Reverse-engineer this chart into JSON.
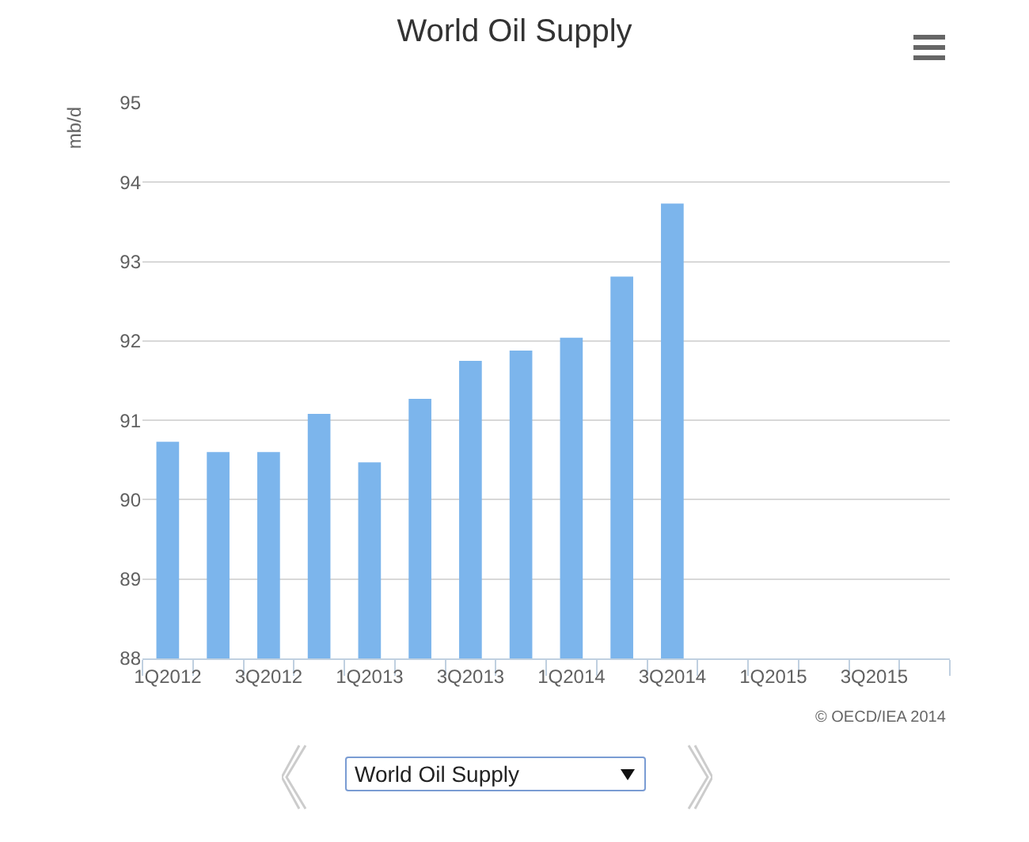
{
  "chart_data": {
    "type": "bar",
    "title": "World Oil Supply",
    "ylabel": "mb/d",
    "categories": [
      "1Q2012",
      null,
      "3Q2012",
      null,
      "1Q2013",
      null,
      "3Q2013",
      null,
      "1Q2014",
      null,
      "3Q2014",
      null,
      "1Q2015",
      null,
      "3Q2015",
      null
    ],
    "series": [
      {
        "color": "#7cb5ec",
        "values": [
          90.73,
          90.6,
          90.6,
          91.08,
          90.47,
          91.27,
          91.75,
          91.88,
          92.04,
          92.81,
          93.73,
          null,
          null,
          null,
          null,
          null
        ]
      }
    ],
    "ylim": [
      88,
      95
    ],
    "yticks": [
      88,
      89,
      90,
      91,
      92,
      93,
      94,
      95
    ],
    "grid": "y",
    "legend": false,
    "annotations": [
      "© OECD/IEA 2014",
      "World Oil Supply"
    ]
  }
}
